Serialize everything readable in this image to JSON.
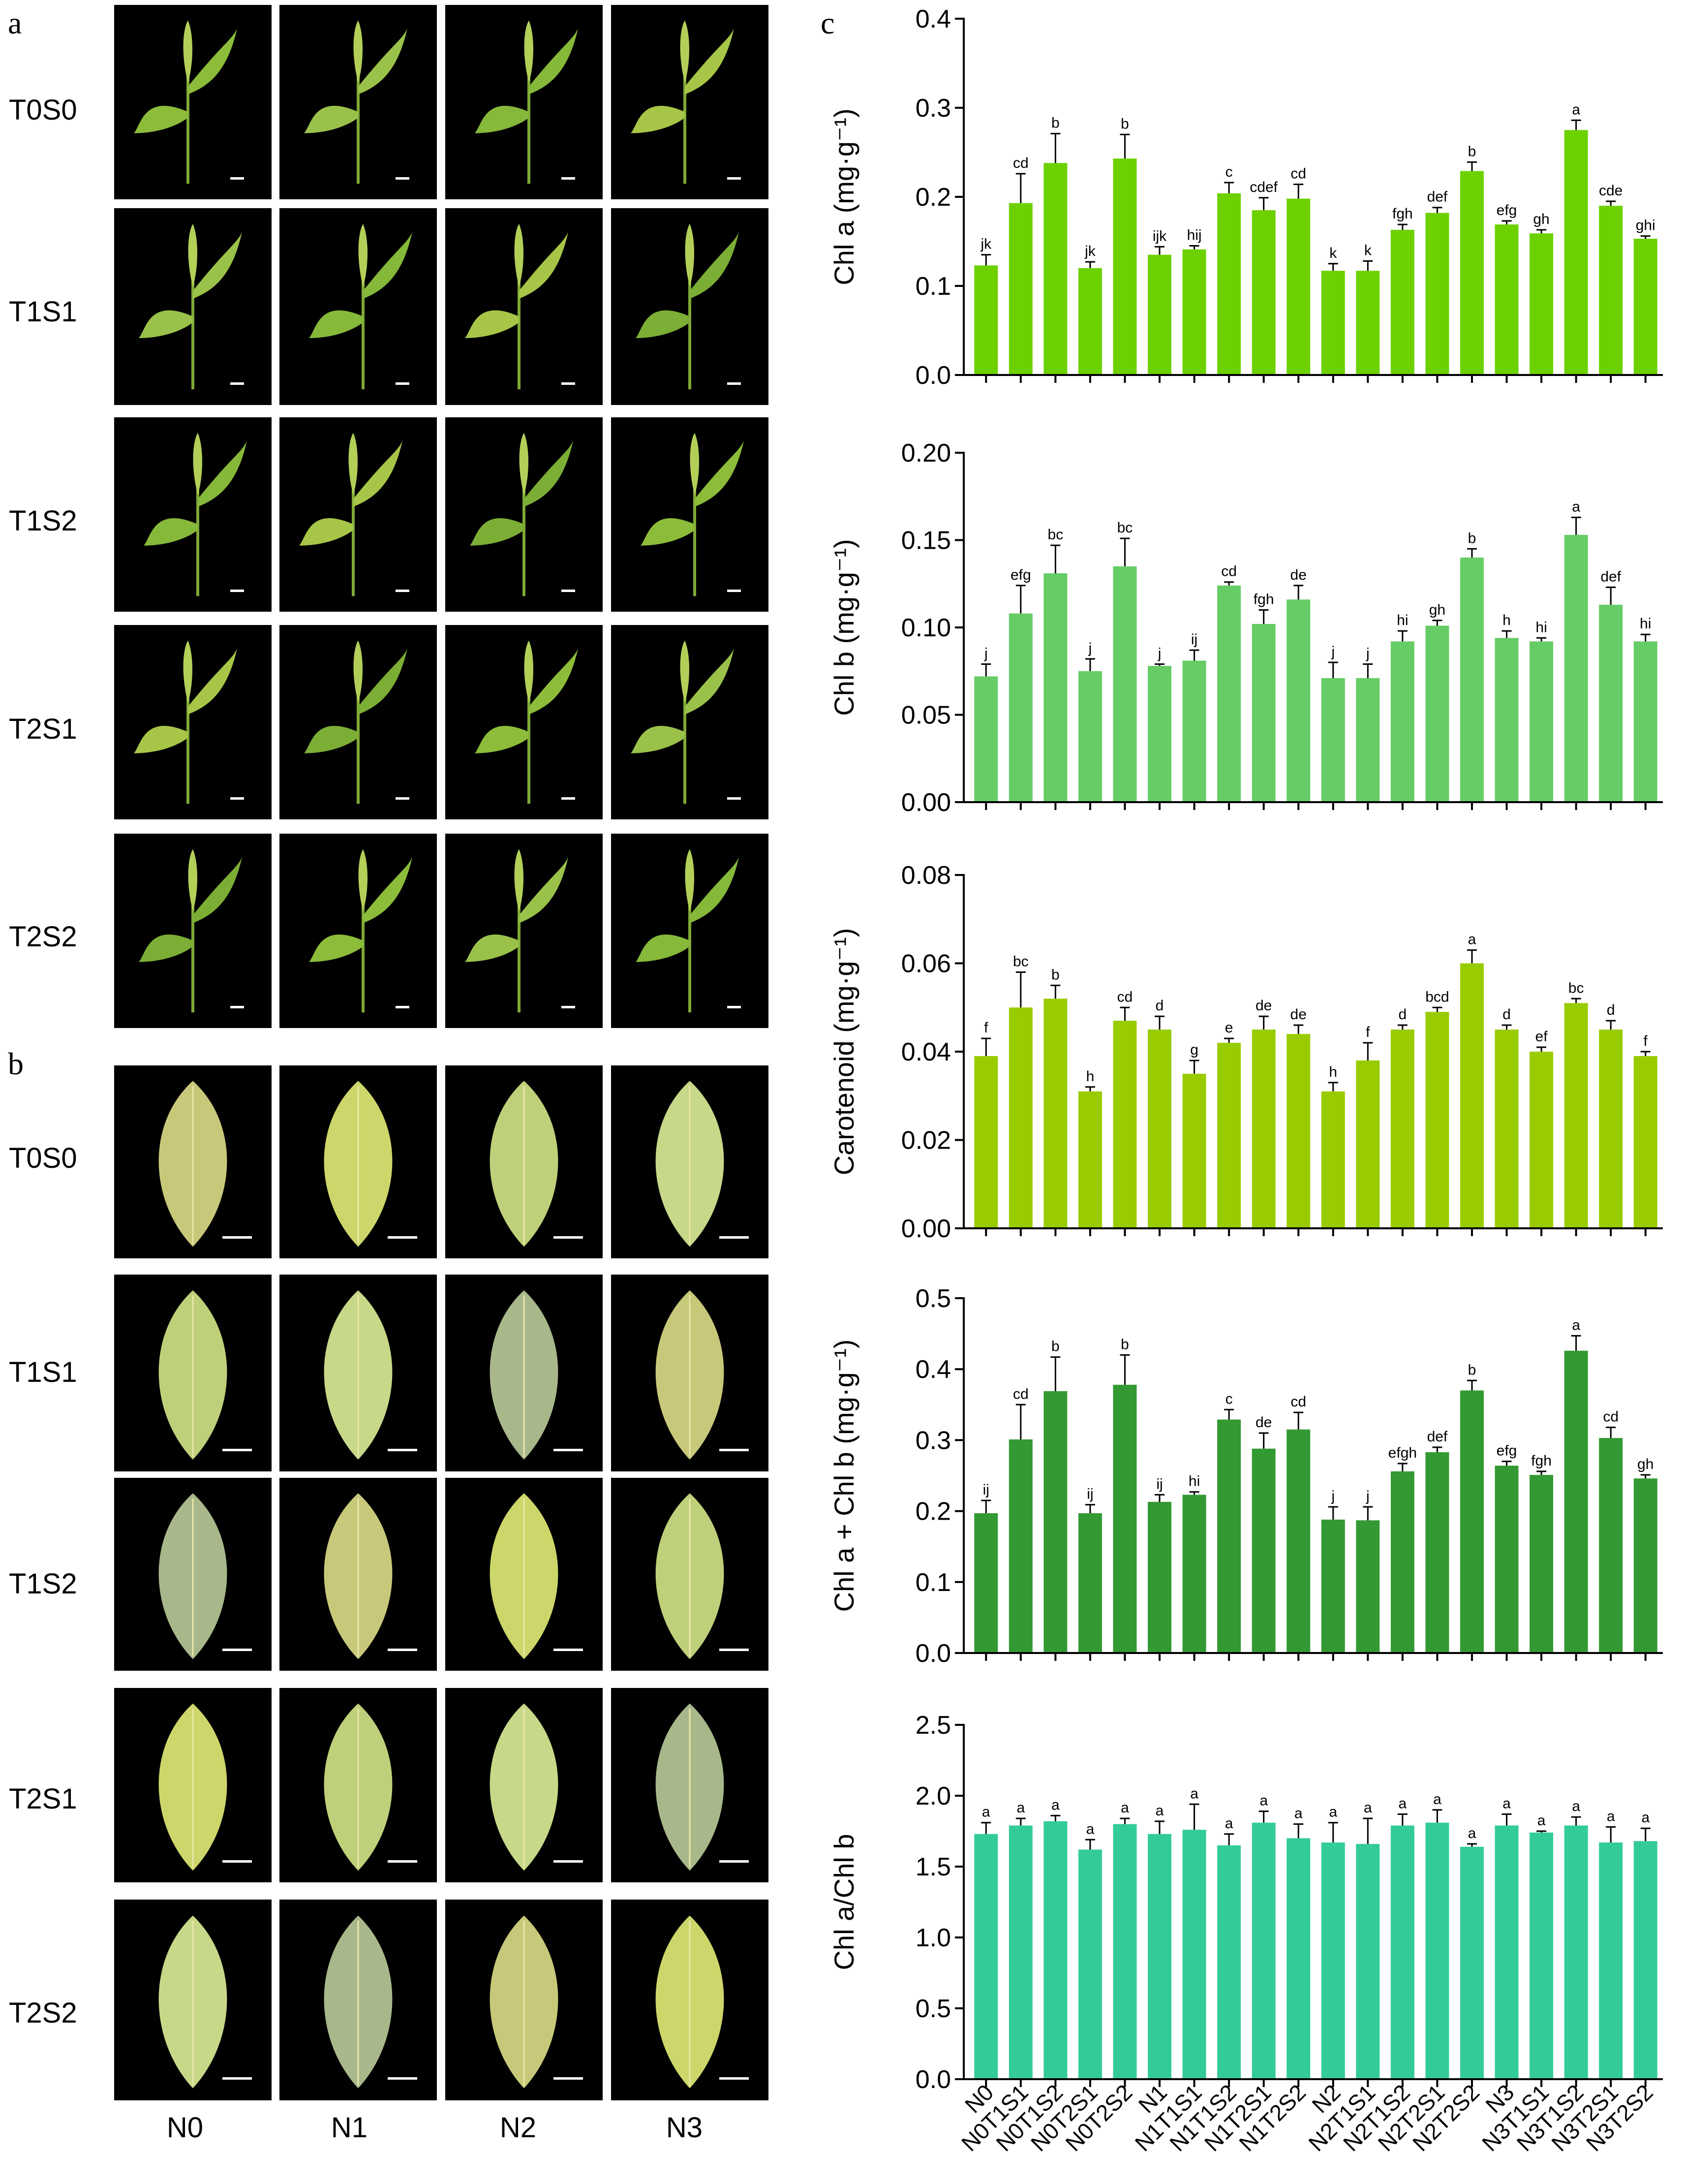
{
  "panels": {
    "a": "a",
    "b": "b",
    "c": "c"
  },
  "photo_rows": [
    "T0S0",
    "T1S1",
    "T1S2",
    "T2S1",
    "T2S2"
  ],
  "photo_cols": [
    "N0",
    "N1",
    "N2",
    "N3"
  ],
  "colors": {
    "chla": "#6dd100",
    "chlb": "#66cc66",
    "car": "#99cc00",
    "sum": "#339933",
    "ratio": "#33cc99",
    "photo_bg": "#000000"
  },
  "chart_data": [
    {
      "type": "bar",
      "ylabel": "Chl a (mg·g⁻¹)",
      "ylim": [
        0,
        0.4
      ],
      "yticks": [
        "0.0",
        "0.1",
        "0.2",
        "0.3",
        "0.4"
      ],
      "categories": [
        "N0",
        "N0T1S1",
        "N0T1S2",
        "N0T2S1",
        "N0T2S2",
        "N1",
        "N1T1S1",
        "N1T1S2",
        "N1T2S1",
        "N1T2S2",
        "N2",
        "N2T1S1",
        "N2T1S2",
        "N2T2S1",
        "N2T2S2",
        "N3",
        "N3T1S1",
        "N3T1S2",
        "N3T2S1",
        "N3T2S2"
      ],
      "values": [
        0.123,
        0.193,
        0.238,
        0.12,
        0.243,
        0.135,
        0.141,
        0.204,
        0.185,
        0.198,
        0.117,
        0.117,
        0.163,
        0.182,
        0.229,
        0.169,
        0.159,
        0.275,
        0.19,
        0.153
      ],
      "errors": [
        0.012,
        0.033,
        0.033,
        0.007,
        0.027,
        0.009,
        0.004,
        0.012,
        0.014,
        0.016,
        0.008,
        0.011,
        0.006,
        0.006,
        0.01,
        0.004,
        0.004,
        0.011,
        0.005,
        0.003
      ],
      "letters": [
        "jk",
        "cd",
        "b",
        "jk",
        "b",
        "ijk",
        "hij",
        "c",
        "cdef",
        "cd",
        "k",
        "k",
        "fgh",
        "def",
        "b",
        "efg",
        "gh",
        "a",
        "cde",
        "ghi"
      ]
    },
    {
      "type": "bar",
      "ylabel": "Chl b (mg·g⁻¹)",
      "ylim": [
        0,
        0.2
      ],
      "yticks": [
        "0.00",
        "0.05",
        "0.10",
        "0.15",
        "0.20"
      ],
      "categories": [
        "N0",
        "N0T1S1",
        "N0T1S2",
        "N0T2S1",
        "N0T2S2",
        "N1",
        "N1T1S1",
        "N1T1S2",
        "N1T2S1",
        "N1T2S2",
        "N2",
        "N2T1S1",
        "N2T1S2",
        "N2T2S1",
        "N2T2S2",
        "N3",
        "N3T1S1",
        "N3T1S2",
        "N3T2S1",
        "N3T2S2"
      ],
      "values": [
        0.072,
        0.108,
        0.131,
        0.075,
        0.135,
        0.078,
        0.081,
        0.124,
        0.102,
        0.116,
        0.071,
        0.071,
        0.092,
        0.101,
        0.14,
        0.094,
        0.092,
        0.153,
        0.113,
        0.092
      ],
      "errors": [
        0.007,
        0.016,
        0.016,
        0.007,
        0.016,
        0.001,
        0.006,
        0.002,
        0.008,
        0.008,
        0.009,
        0.008,
        0.006,
        0.003,
        0.005,
        0.004,
        0.002,
        0.01,
        0.01,
        0.004
      ],
      "letters": [
        "j",
        "efg",
        "bc",
        "j",
        "bc",
        "j",
        "ij",
        "cd",
        "fgh",
        "de",
        "j",
        "j",
        "hi",
        "gh",
        "b",
        "h",
        "hi",
        "a",
        "def",
        "hi"
      ]
    },
    {
      "type": "bar",
      "ylabel": "Carotenoid (mg·g⁻¹)",
      "ylim": [
        0,
        0.08
      ],
      "yticks": [
        "0.00",
        "0.02",
        "0.04",
        "0.06",
        "0.08"
      ],
      "categories": [
        "N0",
        "N0T1S1",
        "N0T1S2",
        "N0T2S1",
        "N0T2S2",
        "N1",
        "N1T1S1",
        "N1T1S2",
        "N1T2S1",
        "N1T2S2",
        "N2",
        "N2T1S1",
        "N2T1S2",
        "N2T2S1",
        "N2T2S2",
        "N3",
        "N3T1S1",
        "N3T1S2",
        "N3T2S1",
        "N3T2S2"
      ],
      "values": [
        0.039,
        0.05,
        0.052,
        0.031,
        0.047,
        0.045,
        0.035,
        0.042,
        0.045,
        0.044,
        0.031,
        0.038,
        0.045,
        0.049,
        0.06,
        0.045,
        0.04,
        0.051,
        0.045,
        0.039
      ],
      "errors": [
        0.004,
        0.008,
        0.003,
        0.001,
        0.003,
        0.003,
        0.003,
        0.001,
        0.003,
        0.002,
        0.002,
        0.004,
        0.001,
        0.001,
        0.003,
        0.001,
        0.001,
        0.001,
        0.002,
        0.001
      ],
      "letters": [
        "f",
        "bc",
        "b",
        "h",
        "cd",
        "d",
        "g",
        "e",
        "de",
        "de",
        "h",
        "f",
        "d",
        "bcd",
        "a",
        "d",
        "ef",
        "bc",
        "d",
        "f"
      ]
    },
    {
      "type": "bar",
      "ylabel": "Chl a + Chl b (mg·g⁻¹)",
      "ylim": [
        0,
        0.5
      ],
      "yticks": [
        "0.0",
        "0.1",
        "0.2",
        "0.3",
        "0.4",
        "0.5"
      ],
      "categories": [
        "N0",
        "N0T1S1",
        "N0T1S2",
        "N0T2S1",
        "N0T2S2",
        "N1",
        "N1T1S1",
        "N1T1S2",
        "N1T2S1",
        "N1T2S2",
        "N2",
        "N2T1S1",
        "N2T1S2",
        "N2T2S1",
        "N2T2S2",
        "N3",
        "N3T1S1",
        "N3T1S2",
        "N3T2S1",
        "N3T2S2"
      ],
      "values": [
        0.197,
        0.301,
        0.369,
        0.197,
        0.378,
        0.213,
        0.223,
        0.329,
        0.288,
        0.315,
        0.188,
        0.187,
        0.256,
        0.283,
        0.37,
        0.264,
        0.251,
        0.426,
        0.303,
        0.246
      ],
      "errors": [
        0.018,
        0.049,
        0.048,
        0.012,
        0.042,
        0.01,
        0.004,
        0.014,
        0.022,
        0.024,
        0.018,
        0.019,
        0.011,
        0.007,
        0.014,
        0.006,
        0.005,
        0.021,
        0.015,
        0.005
      ],
      "letters": [
        "ij",
        "cd",
        "b",
        "ij",
        "b",
        "ij",
        "hi",
        "c",
        "de",
        "cd",
        "j",
        "j",
        "efgh",
        "def",
        "b",
        "efg",
        "fgh",
        "a",
        "cd",
        "gh"
      ]
    },
    {
      "type": "bar",
      "ylabel": "Chl a/Chl b",
      "ylim": [
        0,
        2.5
      ],
      "yticks": [
        "0.0",
        "0.5",
        "1.0",
        "1.5",
        "2.0",
        "2.5"
      ],
      "categories": [
        "N0",
        "N0T1S1",
        "N0T1S2",
        "N0T2S1",
        "N0T2S2",
        "N1",
        "N1T1S1",
        "N1T1S2",
        "N1T2S1",
        "N1T2S2",
        "N2",
        "N2T1S1",
        "N2T1S2",
        "N2T2S1",
        "N2T2S2",
        "N3",
        "N3T1S1",
        "N3T1S2",
        "N3T2S1",
        "N3T2S2"
      ],
      "values": [
        1.73,
        1.79,
        1.82,
        1.62,
        1.8,
        1.73,
        1.76,
        1.65,
        1.81,
        1.7,
        1.67,
        1.66,
        1.79,
        1.81,
        1.64,
        1.79,
        1.74,
        1.79,
        1.67,
        1.68
      ],
      "errors": [
        0.08,
        0.05,
        0.04,
        0.07,
        0.04,
        0.09,
        0.18,
        0.08,
        0.08,
        0.1,
        0.14,
        0.18,
        0.08,
        0.09,
        0.02,
        0.08,
        0.01,
        0.06,
        0.11,
        0.09
      ],
      "letters": [
        "a",
        "a",
        "a",
        "a",
        "a",
        "a",
        "a",
        "a",
        "a",
        "a",
        "a",
        "a",
        "a",
        "a",
        "a",
        "a",
        "a",
        "a",
        "a",
        "a"
      ]
    }
  ]
}
